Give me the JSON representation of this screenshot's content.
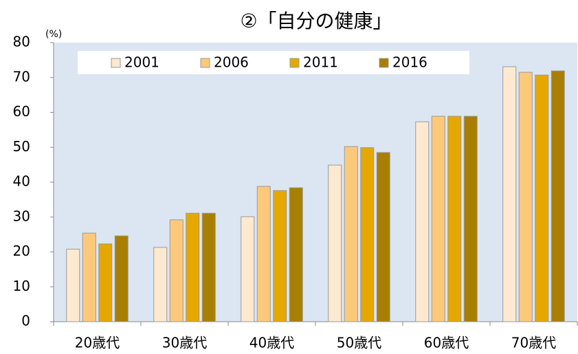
{
  "chart_data": {
    "type": "bar",
    "title": "②「自分の健康」",
    "y_unit": "(%)",
    "categories": [
      "20歳代",
      "30歳代",
      "40歳代",
      "50歳代",
      "60歳代",
      "70歳代"
    ],
    "series": [
      {
        "name": "2001",
        "color": "#fde9d0",
        "values": [
          20.8,
          21.3,
          30.1,
          44.9,
          57.3,
          73.1
        ]
      },
      {
        "name": "2006",
        "color": "#fcc97a",
        "values": [
          25.4,
          29.2,
          38.8,
          50.2,
          58.9,
          71.5
        ]
      },
      {
        "name": "2011",
        "color": "#e5a800",
        "values": [
          22.3,
          31.1,
          37.6,
          49.9,
          58.9,
          70.7
        ]
      },
      {
        "name": "2016",
        "color": "#a87f00",
        "values": [
          24.6,
          31.1,
          38.4,
          48.5,
          58.9,
          71.9
        ]
      }
    ],
    "ylim": [
      0,
      80
    ],
    "yticks": [
      0,
      10,
      20,
      30,
      40,
      50,
      60,
      70,
      80
    ],
    "legend": "top",
    "grid": false
  }
}
